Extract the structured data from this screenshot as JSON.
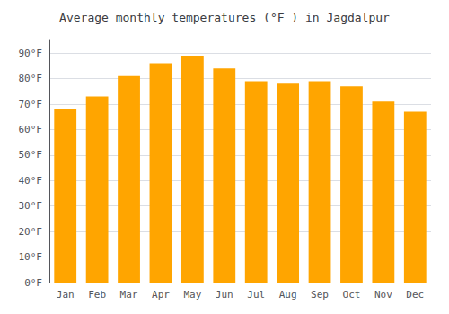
{
  "chart_data": {
    "type": "bar",
    "title": "Average monthly temperatures (°F ) in Jagdalpur",
    "categories": [
      "Jan",
      "Feb",
      "Mar",
      "Apr",
      "May",
      "Jun",
      "Jul",
      "Aug",
      "Sep",
      "Oct",
      "Nov",
      "Dec"
    ],
    "values": [
      68,
      73,
      81,
      86,
      89,
      84,
      79,
      78,
      79,
      77,
      71,
      67
    ],
    "color": "#FFA500",
    "ylim": [
      0,
      95
    ],
    "yticks": [
      {
        "value": 0,
        "label": "0°F"
      },
      {
        "value": 10,
        "label": "10°F"
      },
      {
        "value": 20,
        "label": "20°F"
      },
      {
        "value": 30,
        "label": "30°F"
      },
      {
        "value": 40,
        "label": "40°F"
      },
      {
        "value": 50,
        "label": "50°F"
      },
      {
        "value": 60,
        "label": "60°F"
      },
      {
        "value": 70,
        "label": "70°F"
      },
      {
        "value": 80,
        "label": "80°F"
      },
      {
        "value": 90,
        "label": "90°F"
      }
    ],
    "grid": true
  }
}
